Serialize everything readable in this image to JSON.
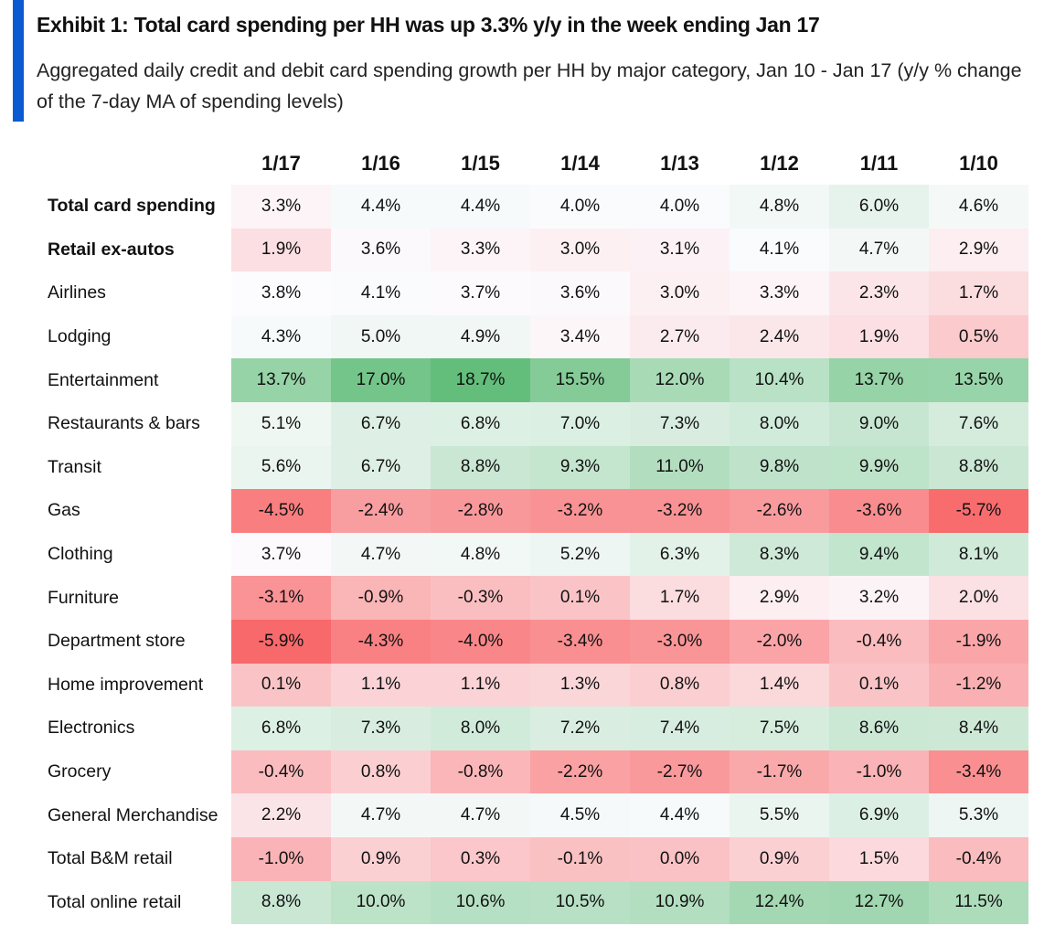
{
  "header": {
    "title": "Exhibit 1: Total card spending per HH was up 3.3% y/y in the week ending Jan 17",
    "subtitle": "Aggregated daily credit and debit card spending growth per HH by major category, Jan 10 - Jan 17 (y/y % change of the 7-day MA of spending levels)"
  },
  "colors": {
    "accent": "#0a5bd1",
    "low": "#F8696B",
    "mid": "#FCFCFF",
    "high": "#63BE7B"
  },
  "chart_data": {
    "type": "heatmap",
    "title": "Exhibit 1: Total card spending per HH was up 3.3% y/y in the week ending Jan 17",
    "columns": [
      "1/17",
      "1/16",
      "1/15",
      "1/14",
      "1/13",
      "1/12",
      "1/11",
      "1/10"
    ],
    "rows": [
      {
        "label": "Total card spending",
        "bold": true,
        "values": [
          3.3,
          4.4,
          4.4,
          4.0,
          4.0,
          4.8,
          6.0,
          4.6
        ]
      },
      {
        "label": "Retail ex-autos",
        "bold": true,
        "values": [
          1.9,
          3.6,
          3.3,
          3.0,
          3.1,
          4.1,
          4.7,
          2.9
        ]
      },
      {
        "label": "Airlines",
        "bold": false,
        "values": [
          3.8,
          4.1,
          3.7,
          3.6,
          3.0,
          3.3,
          2.3,
          1.7
        ]
      },
      {
        "label": "Lodging",
        "bold": false,
        "values": [
          4.3,
          5.0,
          4.9,
          3.4,
          2.7,
          2.4,
          1.9,
          0.5
        ]
      },
      {
        "label": "Entertainment",
        "bold": false,
        "values": [
          13.7,
          17.0,
          18.7,
          15.5,
          12.0,
          10.4,
          13.7,
          13.5
        ]
      },
      {
        "label": "Restaurants & bars",
        "bold": false,
        "values": [
          5.1,
          6.7,
          6.8,
          7.0,
          7.3,
          8.0,
          9.0,
          7.6
        ]
      },
      {
        "label": "Transit",
        "bold": false,
        "values": [
          5.6,
          6.7,
          8.8,
          9.3,
          11.0,
          9.8,
          9.9,
          8.8
        ]
      },
      {
        "label": "Gas",
        "bold": false,
        "values": [
          -4.5,
          -2.4,
          -2.8,
          -3.2,
          -3.2,
          -2.6,
          -3.6,
          -5.7
        ]
      },
      {
        "label": "Clothing",
        "bold": false,
        "values": [
          3.7,
          4.7,
          4.8,
          5.2,
          6.3,
          8.3,
          9.4,
          8.1
        ]
      },
      {
        "label": "Furniture",
        "bold": false,
        "values": [
          -3.1,
          -0.9,
          -0.3,
          0.1,
          1.7,
          2.9,
          3.2,
          2.0
        ]
      },
      {
        "label": "Department store",
        "bold": false,
        "values": [
          -5.9,
          -4.3,
          -4.0,
          -3.4,
          -3.0,
          -2.0,
          -0.4,
          -1.9
        ]
      },
      {
        "label": "Home improvement",
        "bold": false,
        "values": [
          0.1,
          1.1,
          1.1,
          1.3,
          0.8,
          1.4,
          0.1,
          -1.2
        ]
      },
      {
        "label": "Electronics",
        "bold": false,
        "values": [
          6.8,
          7.3,
          8.0,
          7.2,
          7.4,
          7.5,
          8.6,
          8.4
        ]
      },
      {
        "label": "Grocery",
        "bold": false,
        "values": [
          -0.4,
          0.8,
          -0.8,
          -2.2,
          -2.7,
          -1.7,
          -1.0,
          -3.4
        ]
      },
      {
        "label": "General Merchandise",
        "bold": false,
        "values": [
          2.2,
          4.7,
          4.7,
          4.5,
          4.4,
          5.5,
          6.9,
          5.3
        ]
      },
      {
        "label": "Total B&M retail",
        "bold": false,
        "values": [
          -1.0,
          0.9,
          0.3,
          -0.1,
          0.0,
          0.9,
          1.5,
          -0.4
        ]
      },
      {
        "label": "Total online retail",
        "bold": false,
        "values": [
          8.8,
          10.0,
          10.6,
          10.5,
          10.9,
          12.4,
          12.7,
          11.5
        ]
      }
    ],
    "unit": "%",
    "color_scale": {
      "min": -5.9,
      "mid": 3.8,
      "max": 18.7
    }
  }
}
